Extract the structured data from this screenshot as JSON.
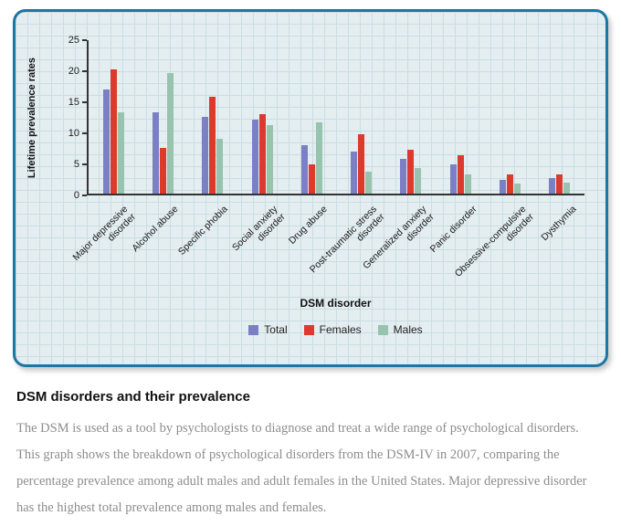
{
  "chart_data": {
    "type": "bar",
    "categories": [
      "Major depressive\ndisorder",
      "Alcohol abuse",
      "Specific phobia",
      "Social anxiety\ndisorder",
      "Drug abuse",
      "Post-traumatic stress\ndisorder",
      "Generalized anxiety\ndisorder",
      "Panic disorder",
      "Obsessive-compulsive\ndisorder",
      "Dysthymia"
    ],
    "series": [
      {
        "name": "Total",
        "color": "#7b7fc4",
        "values": [
          16.9,
          13.2,
          12.5,
          12.1,
          7.9,
          6.8,
          5.7,
          4.7,
          2.3,
          2.5
        ]
      },
      {
        "name": "Females",
        "color": "#dc3a2c",
        "values": [
          20.2,
          7.5,
          15.8,
          13.0,
          4.8,
          9.7,
          7.1,
          6.2,
          3.1,
          3.1
        ]
      },
      {
        "name": "Males",
        "color": "#98c3ae",
        "values": [
          13.2,
          19.6,
          8.9,
          11.1,
          11.6,
          3.6,
          4.2,
          3.1,
          1.6,
          1.8
        ]
      }
    ],
    "title": "",
    "xlabel": "DSM disorder",
    "ylabel": "Lifetime prevalence rates",
    "ylim": [
      0,
      25
    ],
    "yticks": [
      0,
      5,
      10,
      15,
      20,
      25
    ],
    "grid": true,
    "legend_position": "bottom"
  },
  "panel": {
    "border_color": "#1d76a4",
    "background_color": "#e4edf0",
    "grid_color": "#cadde3"
  },
  "caption": {
    "title": "DSM disorders and their prevalence",
    "body": "The DSM is used as a tool by psychologists to diagnose and treat a wide range of psychological disorders. This graph shows the breakdown of psychological disorders from the DSM-IV in 2007, comparing the percentage prevalence among adult males and adult females in the United States. Major depressive disorder has the highest total prevalence among males and females."
  }
}
